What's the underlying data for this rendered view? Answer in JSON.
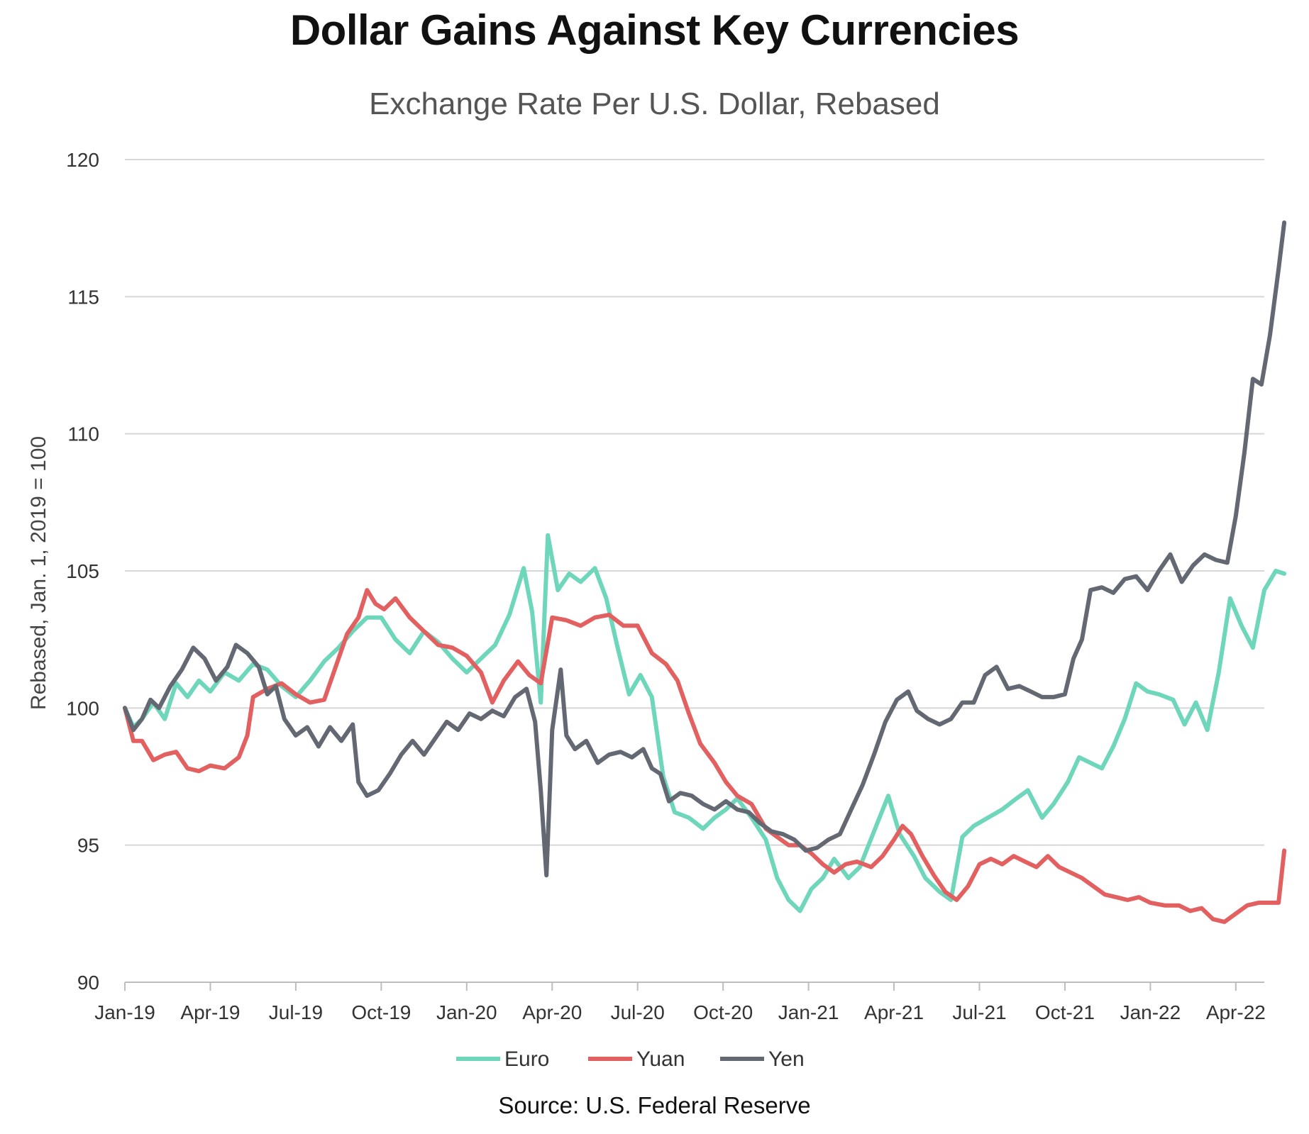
{
  "title": "Dollar Gains Against Key Currencies",
  "subtitle": "Exchange Rate Per U.S. Dollar, Rebased",
  "source": "Source: U.S. Federal Reserve",
  "chart_data": {
    "type": "line",
    "title": "Dollar Gains Against Key Currencies",
    "subtitle": "Exchange Rate Per U.S. Dollar, Rebased",
    "xlabel": "",
    "ylabel": "Rebased, Jan. 1, 2019 = 100",
    "ylim": [
      90,
      120
    ],
    "yticks": [
      90,
      95,
      100,
      105,
      110,
      115,
      120
    ],
    "xlim": [
      0,
      40
    ],
    "x_tick_values": [
      0,
      3,
      6,
      9,
      12,
      15,
      18,
      21,
      24,
      27,
      30,
      33,
      36,
      39
    ],
    "x_tick_labels": [
      "Jan-19",
      "Apr-19",
      "Jul-19",
      "Oct-19",
      "Jan-20",
      "Apr-20",
      "Jul-20",
      "Oct-20",
      "Jan-21",
      "Apr-21",
      "Jul-21",
      "Oct-21",
      "Jan-22",
      "Apr-22"
    ],
    "grid": "horizontal",
    "legend_position": "bottom",
    "series": [
      {
        "name": "Euro",
        "color": "#6dd6bb",
        "points": [
          [
            0,
            100
          ],
          [
            0.3,
            99.3
          ],
          [
            0.6,
            99.6
          ],
          [
            1.0,
            100.2
          ],
          [
            1.4,
            99.6
          ],
          [
            1.8,
            100.9
          ],
          [
            2.2,
            100.4
          ],
          [
            2.6,
            101.0
          ],
          [
            3.0,
            100.6
          ],
          [
            3.5,
            101.3
          ],
          [
            4.0,
            101.0
          ],
          [
            4.5,
            101.6
          ],
          [
            5.0,
            101.4
          ],
          [
            5.5,
            100.8
          ],
          [
            6.0,
            100.4
          ],
          [
            6.5,
            101.0
          ],
          [
            7.0,
            101.7
          ],
          [
            7.5,
            102.2
          ],
          [
            8.0,
            102.8
          ],
          [
            8.5,
            103.3
          ],
          [
            9.0,
            103.3
          ],
          [
            9.5,
            102.5
          ],
          [
            10.0,
            102.0
          ],
          [
            10.5,
            102.8
          ],
          [
            11.0,
            102.4
          ],
          [
            11.5,
            101.8
          ],
          [
            12.0,
            101.3
          ],
          [
            12.5,
            101.8
          ],
          [
            13.0,
            102.3
          ],
          [
            13.5,
            103.4
          ],
          [
            14.0,
            105.1
          ],
          [
            14.3,
            103.5
          ],
          [
            14.6,
            100.2
          ],
          [
            14.85,
            106.3
          ],
          [
            15.2,
            104.3
          ],
          [
            15.6,
            104.9
          ],
          [
            16.0,
            104.6
          ],
          [
            16.5,
            105.1
          ],
          [
            16.9,
            104.0
          ],
          [
            17.3,
            102.2
          ],
          [
            17.7,
            100.5
          ],
          [
            18.1,
            101.2
          ],
          [
            18.5,
            100.4
          ],
          [
            18.9,
            97.5
          ],
          [
            19.3,
            96.2
          ],
          [
            19.8,
            96.0
          ],
          [
            20.3,
            95.6
          ],
          [
            20.7,
            96.0
          ],
          [
            21.1,
            96.3
          ],
          [
            21.5,
            96.7
          ],
          [
            22.0,
            96.0
          ],
          [
            22.5,
            95.2
          ],
          [
            22.9,
            93.8
          ],
          [
            23.3,
            93.0
          ],
          [
            23.7,
            92.6
          ],
          [
            24.1,
            93.4
          ],
          [
            24.5,
            93.8
          ],
          [
            24.9,
            94.5
          ],
          [
            25.4,
            93.8
          ],
          [
            25.8,
            94.2
          ],
          [
            26.3,
            95.5
          ],
          [
            26.8,
            96.8
          ],
          [
            27.2,
            95.4
          ],
          [
            27.7,
            94.6
          ],
          [
            28.1,
            93.8
          ],
          [
            28.6,
            93.3
          ],
          [
            29.0,
            93.0
          ],
          [
            29.4,
            95.3
          ],
          [
            29.8,
            95.7
          ],
          [
            30.3,
            96.0
          ],
          [
            30.8,
            96.3
          ],
          [
            31.3,
            96.7
          ],
          [
            31.7,
            97.0
          ],
          [
            32.2,
            96.0
          ],
          [
            32.6,
            96.5
          ],
          [
            33.1,
            97.3
          ],
          [
            33.5,
            98.2
          ],
          [
            33.9,
            98.0
          ],
          [
            34.3,
            97.8
          ],
          [
            34.7,
            98.6
          ],
          [
            35.1,
            99.6
          ],
          [
            35.5,
            100.9
          ],
          [
            35.9,
            100.6
          ],
          [
            36.3,
            100.5
          ],
          [
            36.8,
            100.3
          ],
          [
            37.2,
            99.4
          ],
          [
            37.6,
            100.2
          ],
          [
            38.0,
            99.2
          ],
          [
            38.4,
            101.3
          ],
          [
            38.8,
            104.0
          ],
          [
            39.2,
            103.0
          ],
          [
            39.6,
            102.2
          ],
          [
            40.0,
            104.3
          ],
          [
            40.4,
            105.0
          ],
          [
            40.7,
            104.9
          ]
        ]
      },
      {
        "name": "Yuan",
        "color": "#e36060",
        "points": [
          [
            0,
            100
          ],
          [
            0.3,
            98.8
          ],
          [
            0.6,
            98.8
          ],
          [
            1.0,
            98.1
          ],
          [
            1.4,
            98.3
          ],
          [
            1.8,
            98.4
          ],
          [
            2.2,
            97.8
          ],
          [
            2.6,
            97.7
          ],
          [
            3.0,
            97.9
          ],
          [
            3.5,
            97.8
          ],
          [
            4.0,
            98.2
          ],
          [
            4.3,
            99.0
          ],
          [
            4.5,
            100.4
          ],
          [
            5.0,
            100.7
          ],
          [
            5.5,
            100.9
          ],
          [
            6.0,
            100.5
          ],
          [
            6.5,
            100.2
          ],
          [
            7.0,
            100.3
          ],
          [
            7.4,
            101.5
          ],
          [
            7.8,
            102.7
          ],
          [
            8.2,
            103.3
          ],
          [
            8.5,
            104.3
          ],
          [
            8.8,
            103.8
          ],
          [
            9.1,
            103.6
          ],
          [
            9.5,
            104.0
          ],
          [
            10.0,
            103.3
          ],
          [
            10.5,
            102.8
          ],
          [
            11.0,
            102.3
          ],
          [
            11.5,
            102.2
          ],
          [
            12.0,
            101.9
          ],
          [
            12.5,
            101.3
          ],
          [
            12.9,
            100.2
          ],
          [
            13.3,
            101.0
          ],
          [
            13.8,
            101.7
          ],
          [
            14.2,
            101.2
          ],
          [
            14.6,
            100.9
          ],
          [
            15.0,
            103.3
          ],
          [
            15.5,
            103.2
          ],
          [
            16.0,
            103.0
          ],
          [
            16.5,
            103.3
          ],
          [
            17.0,
            103.4
          ],
          [
            17.5,
            103.0
          ],
          [
            18.0,
            103.0
          ],
          [
            18.5,
            102.0
          ],
          [
            19.0,
            101.6
          ],
          [
            19.4,
            101.0
          ],
          [
            19.8,
            99.8
          ],
          [
            20.2,
            98.7
          ],
          [
            20.7,
            98.0
          ],
          [
            21.1,
            97.3
          ],
          [
            21.5,
            96.8
          ],
          [
            22.0,
            96.5
          ],
          [
            22.5,
            95.6
          ],
          [
            22.9,
            95.3
          ],
          [
            23.3,
            95.0
          ],
          [
            23.7,
            95.0
          ],
          [
            24.1,
            94.7
          ],
          [
            24.5,
            94.3
          ],
          [
            24.9,
            94.0
          ],
          [
            25.3,
            94.3
          ],
          [
            25.7,
            94.4
          ],
          [
            26.2,
            94.2
          ],
          [
            26.6,
            94.6
          ],
          [
            27.0,
            95.2
          ],
          [
            27.3,
            95.7
          ],
          [
            27.6,
            95.4
          ],
          [
            28.0,
            94.6
          ],
          [
            28.4,
            93.9
          ],
          [
            28.8,
            93.3
          ],
          [
            29.2,
            93.0
          ],
          [
            29.6,
            93.5
          ],
          [
            30.0,
            94.3
          ],
          [
            30.4,
            94.5
          ],
          [
            30.8,
            94.3
          ],
          [
            31.2,
            94.6
          ],
          [
            31.6,
            94.4
          ],
          [
            32.0,
            94.2
          ],
          [
            32.4,
            94.6
          ],
          [
            32.8,
            94.2
          ],
          [
            33.2,
            94.0
          ],
          [
            33.6,
            93.8
          ],
          [
            34.0,
            93.5
          ],
          [
            34.4,
            93.2
          ],
          [
            34.8,
            93.1
          ],
          [
            35.2,
            93.0
          ],
          [
            35.6,
            93.1
          ],
          [
            36.0,
            92.9
          ],
          [
            36.5,
            92.8
          ],
          [
            37.0,
            92.8
          ],
          [
            37.4,
            92.6
          ],
          [
            37.8,
            92.7
          ],
          [
            38.2,
            92.3
          ],
          [
            38.6,
            92.2
          ],
          [
            39.0,
            92.5
          ],
          [
            39.4,
            92.8
          ],
          [
            39.8,
            92.9
          ],
          [
            40.2,
            92.9
          ],
          [
            40.5,
            92.9
          ],
          [
            40.7,
            94.8
          ]
        ]
      },
      {
        "name": "Yen",
        "color": "#636872",
        "points": [
          [
            0,
            100
          ],
          [
            0.3,
            99.2
          ],
          [
            0.6,
            99.6
          ],
          [
            0.9,
            100.3
          ],
          [
            1.2,
            100.0
          ],
          [
            1.6,
            100.8
          ],
          [
            2.0,
            101.4
          ],
          [
            2.4,
            102.2
          ],
          [
            2.8,
            101.8
          ],
          [
            3.2,
            101.0
          ],
          [
            3.6,
            101.5
          ],
          [
            3.9,
            102.3
          ],
          [
            4.3,
            102.0
          ],
          [
            4.7,
            101.5
          ],
          [
            5.0,
            100.5
          ],
          [
            5.3,
            100.8
          ],
          [
            5.6,
            99.6
          ],
          [
            6.0,
            99.0
          ],
          [
            6.4,
            99.3
          ],
          [
            6.8,
            98.6
          ],
          [
            7.2,
            99.3
          ],
          [
            7.6,
            98.8
          ],
          [
            8.0,
            99.4
          ],
          [
            8.2,
            97.3
          ],
          [
            8.5,
            96.8
          ],
          [
            8.9,
            97.0
          ],
          [
            9.3,
            97.6
          ],
          [
            9.7,
            98.3
          ],
          [
            10.1,
            98.8
          ],
          [
            10.5,
            98.3
          ],
          [
            10.9,
            98.9
          ],
          [
            11.3,
            99.5
          ],
          [
            11.7,
            99.2
          ],
          [
            12.1,
            99.8
          ],
          [
            12.5,
            99.6
          ],
          [
            12.9,
            99.9
          ],
          [
            13.3,
            99.7
          ],
          [
            13.7,
            100.4
          ],
          [
            14.1,
            100.7
          ],
          [
            14.4,
            99.5
          ],
          [
            14.6,
            97.0
          ],
          [
            14.8,
            93.9
          ],
          [
            15.0,
            99.2
          ],
          [
            15.3,
            101.4
          ],
          [
            15.5,
            99.0
          ],
          [
            15.8,
            98.5
          ],
          [
            16.2,
            98.8
          ],
          [
            16.6,
            98.0
          ],
          [
            17.0,
            98.3
          ],
          [
            17.4,
            98.4
          ],
          [
            17.8,
            98.2
          ],
          [
            18.2,
            98.5
          ],
          [
            18.5,
            97.8
          ],
          [
            18.8,
            97.6
          ],
          [
            19.1,
            96.6
          ],
          [
            19.5,
            96.9
          ],
          [
            19.9,
            96.8
          ],
          [
            20.3,
            96.5
          ],
          [
            20.7,
            96.3
          ],
          [
            21.1,
            96.6
          ],
          [
            21.5,
            96.3
          ],
          [
            21.9,
            96.2
          ],
          [
            22.3,
            95.8
          ],
          [
            22.7,
            95.5
          ],
          [
            23.1,
            95.4
          ],
          [
            23.5,
            95.2
          ],
          [
            23.9,
            94.8
          ],
          [
            24.3,
            94.9
          ],
          [
            24.7,
            95.2
          ],
          [
            25.1,
            95.4
          ],
          [
            25.5,
            96.3
          ],
          [
            25.9,
            97.2
          ],
          [
            26.3,
            98.3
          ],
          [
            26.7,
            99.5
          ],
          [
            27.1,
            100.3
          ],
          [
            27.5,
            100.6
          ],
          [
            27.8,
            99.9
          ],
          [
            28.2,
            99.6
          ],
          [
            28.6,
            99.4
          ],
          [
            29.0,
            99.6
          ],
          [
            29.4,
            100.2
          ],
          [
            29.8,
            100.2
          ],
          [
            30.2,
            101.2
          ],
          [
            30.6,
            101.5
          ],
          [
            31.0,
            100.7
          ],
          [
            31.4,
            100.8
          ],
          [
            31.8,
            100.6
          ],
          [
            32.2,
            100.4
          ],
          [
            32.6,
            100.4
          ],
          [
            33.0,
            100.5
          ],
          [
            33.3,
            101.8
          ],
          [
            33.6,
            102.5
          ],
          [
            33.9,
            104.3
          ],
          [
            34.3,
            104.4
          ],
          [
            34.7,
            104.2
          ],
          [
            35.1,
            104.7
          ],
          [
            35.5,
            104.8
          ],
          [
            35.9,
            104.3
          ],
          [
            36.3,
            105.0
          ],
          [
            36.7,
            105.6
          ],
          [
            37.1,
            104.6
          ],
          [
            37.5,
            105.2
          ],
          [
            37.9,
            105.6
          ],
          [
            38.3,
            105.4
          ],
          [
            38.7,
            105.3
          ],
          [
            39.0,
            107.0
          ],
          [
            39.3,
            109.3
          ],
          [
            39.6,
            112.0
          ],
          [
            39.9,
            111.8
          ],
          [
            40.2,
            113.6
          ],
          [
            40.5,
            116.0
          ],
          [
            40.7,
            117.7
          ]
        ]
      }
    ]
  }
}
